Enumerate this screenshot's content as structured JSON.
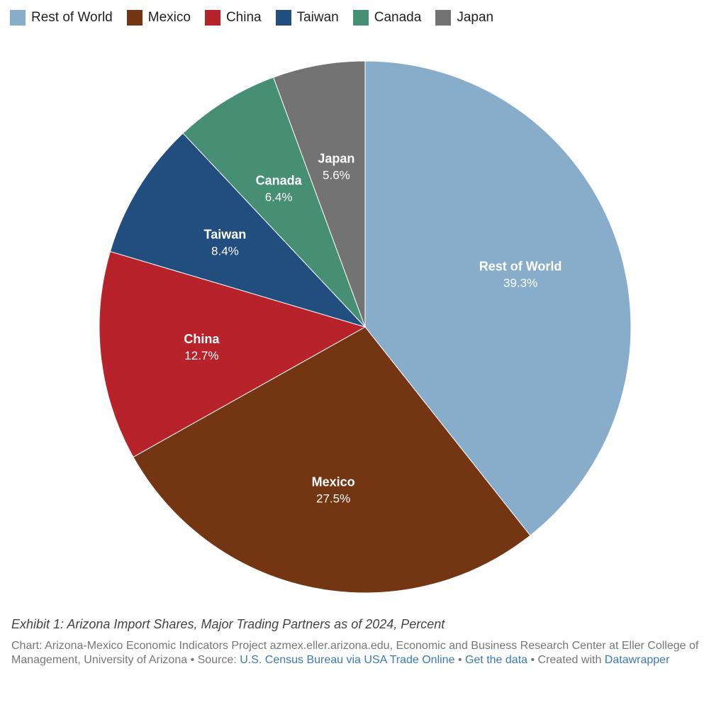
{
  "chart_data": {
    "type": "pie",
    "categories": [
      "Rest of World",
      "Mexico",
      "China",
      "Taiwan",
      "Canada",
      "Japan"
    ],
    "values": [
      39.3,
      27.5,
      12.7,
      8.4,
      6.4,
      5.6
    ],
    "value_labels": [
      "39.3%",
      "27.5%",
      "12.7%",
      "8.4%",
      "6.4%",
      "5.6%"
    ],
    "colors": [
      "#88adcb",
      "#733512",
      "#b8232b",
      "#224d7f",
      "#468e74",
      "#737373"
    ],
    "legend_position": "top-left",
    "start": "top",
    "direction": "clockwise"
  },
  "footer": {
    "caption": "Exhibit 1: Arizona Import Shares, Major Trading Partners as of 2024, Percent",
    "credit_prefix": "Chart: Arizona-Mexico Economic Indicators Project azmex.eller.arizona.edu, Economic and Business Research Center at Eller College of Management, University of Arizona • Source: ",
    "source_link": "U.S. Census Bureau via USA Trade Online",
    "separator": " • ",
    "get_data_link": "Get the data",
    "created_with": " • Created with ",
    "tool_link": "Datawrapper"
  }
}
